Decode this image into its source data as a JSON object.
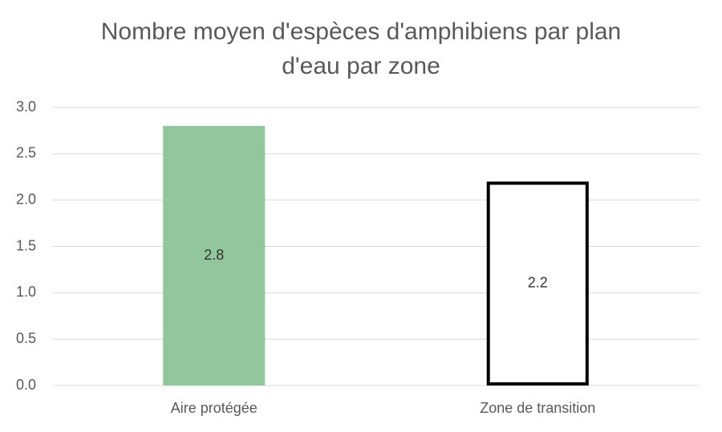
{
  "chart_data": {
    "type": "bar",
    "title": "Nombre moyen d'espèces d'amphibiens par plan d'eau par zone",
    "categories": [
      "Aire protégée",
      "Zone de transition"
    ],
    "values": [
      2.8,
      2.2
    ],
    "colors": [
      "#93c69d",
      "#ffffff"
    ],
    "edge_colors": [
      "#93c69d",
      "#000000"
    ],
    "ylim": [
      0,
      3
    ],
    "yticks": [
      {
        "value": 0,
        "label": "0.0"
      },
      0.5,
      {
        "value": 1,
        "label": "1.0"
      },
      1.5,
      {
        "value": 2,
        "label": "2.0"
      },
      2.5,
      {
        "value": 3,
        "label": "3.0"
      }
    ],
    "grid": true
  }
}
